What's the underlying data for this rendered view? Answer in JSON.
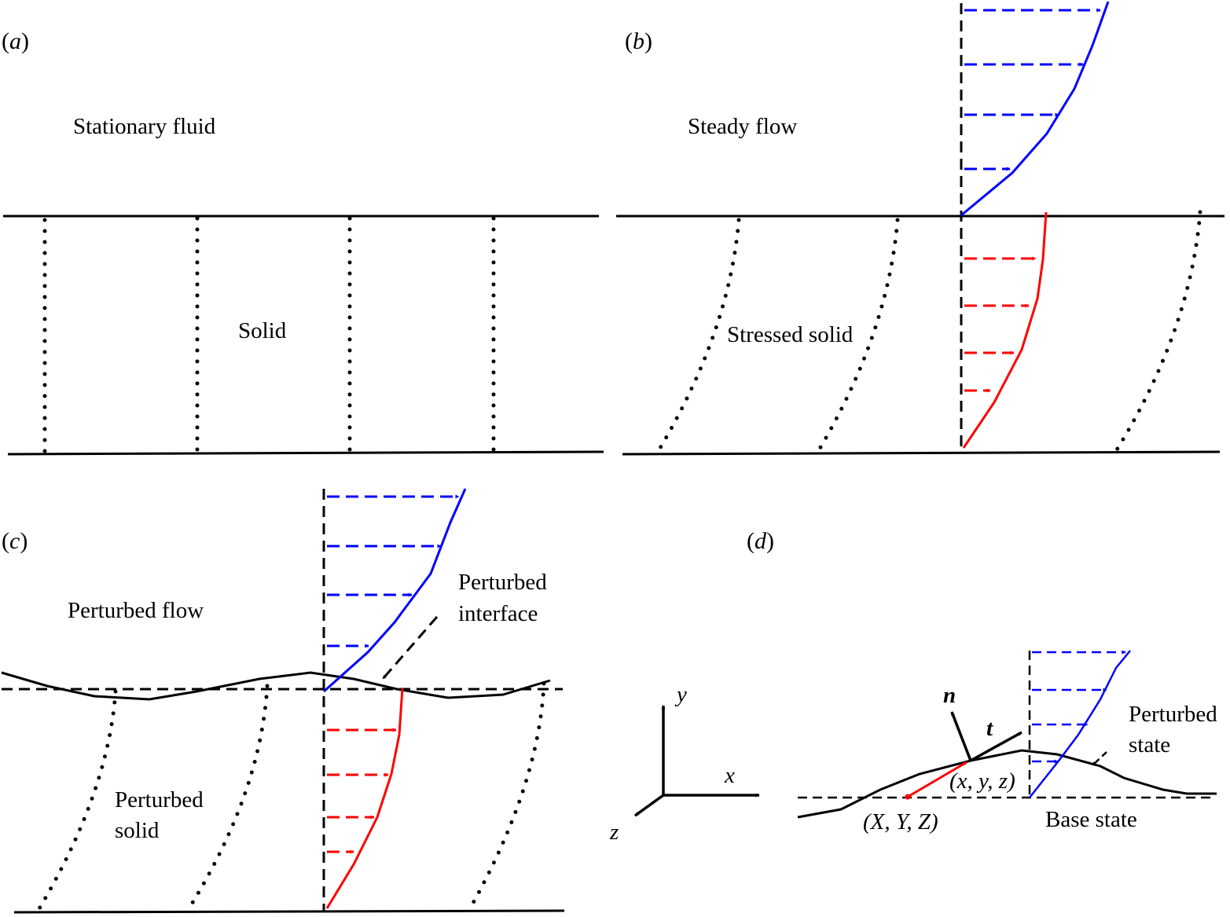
{
  "panels": {
    "a": {
      "tag_open": "(",
      "tag_letter": "a",
      "tag_close": ")",
      "fluid_label": "Stationary fluid",
      "solid_label": "Solid"
    },
    "b": {
      "tag_open": "(",
      "tag_letter": "b",
      "tag_close": ")",
      "fluid_label": "Steady flow",
      "solid_label": "Stressed solid"
    },
    "c": {
      "tag_open": "(",
      "tag_letter": "c",
      "tag_close": ")",
      "fluid_label": "Perturbed flow",
      "interface_label_line1": "Perturbed",
      "interface_label_line2": "interface",
      "solid_label_line1": "Perturbed",
      "solid_label_line2": "solid"
    },
    "d": {
      "tag_open": "(",
      "tag_letter": "d",
      "tag_close": ")",
      "normal_vector": "n",
      "tangent_vector": "t",
      "perturbed_point": "(x, y, z)",
      "base_point": "(X, Y, Z)",
      "perturbed_state_line1": "Perturbed",
      "perturbed_state_line2": "state",
      "base_state": "Base state"
    }
  },
  "axes": {
    "x": "x",
    "y": "y",
    "z": "z"
  },
  "colors": {
    "ink": "#000000",
    "fluid_velocity": "#0000ff",
    "solid_displacement": "#ff0000"
  }
}
